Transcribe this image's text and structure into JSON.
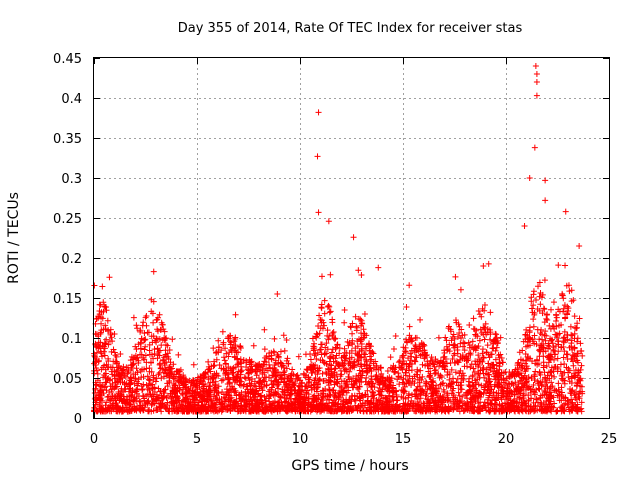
{
  "chart_data": {
    "type": "scatter",
    "title": "Day 355 of 2014, Rate Of TEC Index for receiver stas",
    "xlabel": "GPS time / hours",
    "ylabel": "ROTI / TECUs",
    "xlim": [
      0,
      25
    ],
    "ylim": [
      0,
      0.45
    ],
    "xticks": [
      0,
      5,
      10,
      15,
      20,
      25
    ],
    "yticks": [
      0,
      0.05,
      0.1,
      0.15,
      0.2,
      0.25,
      0.3,
      0.35,
      0.4,
      0.45
    ],
    "grid": true,
    "marker": "+",
    "color": "#ff0000",
    "data_extent_x": [
      0,
      23.7
    ],
    "baseline_range": [
      0.01,
      0.12
    ],
    "notable_points": [
      {
        "x": 0.75,
        "y": 0.176
      },
      {
        "x": 2.9,
        "y": 0.183
      },
      {
        "x": 8.9,
        "y": 0.155
      },
      {
        "x": 10.9,
        "y": 0.382
      },
      {
        "x": 10.85,
        "y": 0.327
      },
      {
        "x": 10.9,
        "y": 0.257
      },
      {
        "x": 11.4,
        "y": 0.246
      },
      {
        "x": 12.6,
        "y": 0.226
      },
      {
        "x": 13.8,
        "y": 0.188
      },
      {
        "x": 15.3,
        "y": 0.166
      },
      {
        "x": 18.9,
        "y": 0.19
      },
      {
        "x": 20.9,
        "y": 0.24
      },
      {
        "x": 21.15,
        "y": 0.3
      },
      {
        "x": 21.45,
        "y": 0.44
      },
      {
        "x": 21.5,
        "y": 0.43
      },
      {
        "x": 21.5,
        "y": 0.42
      },
      {
        "x": 21.5,
        "y": 0.403
      },
      {
        "x": 21.4,
        "y": 0.338
      },
      {
        "x": 21.9,
        "y": 0.297
      },
      {
        "x": 21.9,
        "y": 0.272
      },
      {
        "x": 22.9,
        "y": 0.258
      },
      {
        "x": 23.55,
        "y": 0.215
      }
    ]
  }
}
